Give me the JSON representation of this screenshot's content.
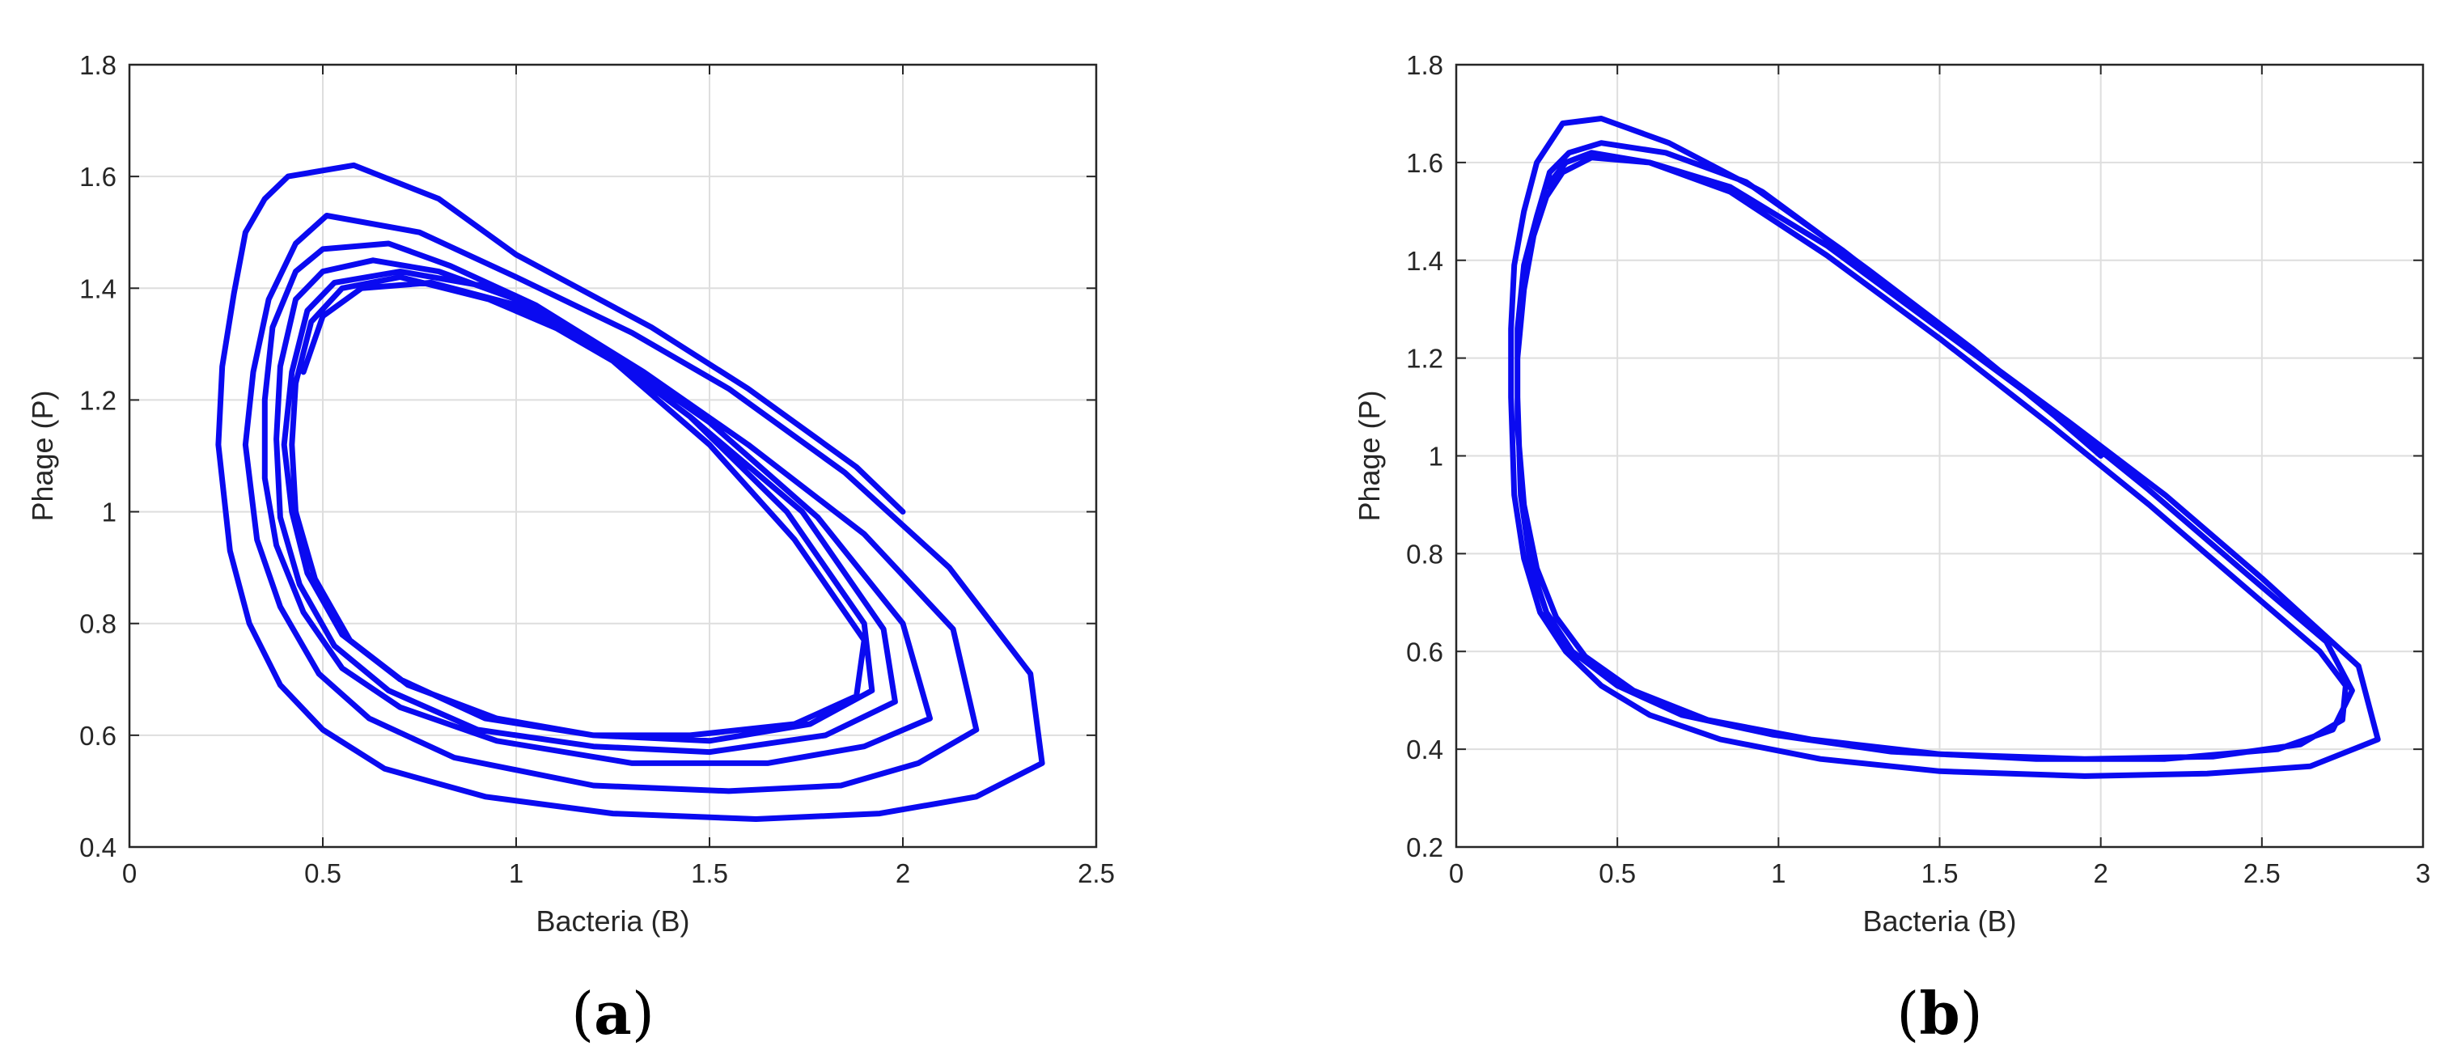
{
  "colors": {
    "curve": "#0a0af0",
    "grid": "#dedede",
    "axis": "#262626"
  },
  "chart_data": [
    {
      "type": "line",
      "panel_label": "(a)",
      "panel_letter": "a",
      "xlabel": "Bacteria (B)",
      "ylabel": "Phage (P)",
      "xlim": [
        0,
        2.5
      ],
      "ylim": [
        0.4,
        1.8
      ],
      "xticks": [
        "0",
        "0.5",
        "1",
        "1.5",
        "2",
        "2.5"
      ],
      "yticks": [
        "0.4",
        "0.6",
        "0.8",
        "1",
        "1.2",
        "1.4",
        "1.6",
        "1.8"
      ],
      "grid": true,
      "series": [
        {
          "points": [
            [
              2.0,
              1.0
            ],
            [
              1.88,
              1.08
            ],
            [
              1.6,
              1.22
            ],
            [
              1.35,
              1.33
            ],
            [
              1.0,
              1.46
            ],
            [
              0.8,
              1.56
            ],
            [
              0.58,
              1.62
            ],
            [
              0.41,
              1.6
            ],
            [
              0.35,
              1.56
            ],
            [
              0.3,
              1.5
            ],
            [
              0.27,
              1.39
            ],
            [
              0.24,
              1.26
            ],
            [
              0.23,
              1.12
            ],
            [
              0.26,
              0.93
            ],
            [
              0.31,
              0.8
            ],
            [
              0.39,
              0.69
            ],
            [
              0.5,
              0.61
            ],
            [
              0.66,
              0.54
            ],
            [
              0.92,
              0.49
            ],
            [
              1.25,
              0.46
            ],
            [
              1.62,
              0.45
            ],
            [
              1.94,
              0.46
            ],
            [
              2.19,
              0.49
            ],
            [
              2.36,
              0.55
            ],
            [
              2.33,
              0.71
            ],
            [
              2.12,
              0.9
            ],
            [
              1.85,
              1.07
            ],
            [
              1.55,
              1.22
            ],
            [
              1.3,
              1.32
            ],
            [
              1.0,
              1.42
            ],
            [
              0.75,
              1.5
            ],
            [
              0.51,
              1.53
            ],
            [
              0.43,
              1.48
            ],
            [
              0.36,
              1.38
            ],
            [
              0.32,
              1.25
            ],
            [
              0.3,
              1.12
            ],
            [
              0.33,
              0.95
            ],
            [
              0.39,
              0.83
            ],
            [
              0.49,
              0.71
            ],
            [
              0.62,
              0.63
            ],
            [
              0.84,
              0.56
            ],
            [
              1.2,
              0.51
            ],
            [
              1.55,
              0.5
            ],
            [
              1.84,
              0.51
            ],
            [
              2.04,
              0.55
            ],
            [
              2.19,
              0.61
            ],
            [
              2.13,
              0.79
            ],
            [
              1.9,
              0.96
            ],
            [
              1.6,
              1.12
            ],
            [
              1.33,
              1.25
            ],
            [
              1.05,
              1.37
            ],
            [
              0.83,
              1.44
            ],
            [
              0.67,
              1.48
            ],
            [
              0.5,
              1.47
            ],
            [
              0.43,
              1.43
            ],
            [
              0.37,
              1.33
            ],
            [
              0.35,
              1.2
            ],
            [
              0.35,
              1.06
            ],
            [
              0.38,
              0.94
            ],
            [
              0.45,
              0.82
            ],
            [
              0.55,
              0.72
            ],
            [
              0.7,
              0.65
            ],
            [
              0.95,
              0.59
            ],
            [
              1.3,
              0.55
            ],
            [
              1.65,
              0.55
            ],
            [
              1.9,
              0.58
            ],
            [
              2.07,
              0.63
            ],
            [
              2.0,
              0.8
            ],
            [
              1.78,
              0.99
            ],
            [
              1.5,
              1.16
            ],
            [
              1.25,
              1.28
            ],
            [
              1.0,
              1.38
            ],
            [
              0.8,
              1.43
            ],
            [
              0.63,
              1.45
            ],
            [
              0.5,
              1.43
            ],
            [
              0.43,
              1.38
            ],
            [
              0.39,
              1.26
            ],
            [
              0.38,
              1.13
            ],
            [
              0.39,
              0.99
            ],
            [
              0.44,
              0.87
            ],
            [
              0.53,
              0.76
            ],
            [
              0.67,
              0.68
            ],
            [
              0.9,
              0.61
            ],
            [
              1.2,
              0.58
            ],
            [
              1.5,
              0.57
            ],
            [
              1.8,
              0.6
            ],
            [
              1.98,
              0.66
            ],
            [
              1.95,
              0.79
            ],
            [
              1.74,
              1.0
            ],
            [
              1.45,
              1.17
            ],
            [
              1.2,
              1.3
            ],
            [
              0.95,
              1.4
            ],
            [
              0.7,
              1.43
            ],
            [
              0.53,
              1.41
            ],
            [
              0.46,
              1.36
            ],
            [
              0.42,
              1.25
            ],
            [
              0.4,
              1.12
            ],
            [
              0.42,
              1.0
            ],
            [
              0.46,
              0.89
            ],
            [
              0.55,
              0.78
            ],
            [
              0.7,
              0.7
            ],
            [
              0.92,
              0.63
            ],
            [
              1.2,
              0.6
            ],
            [
              1.5,
              0.59
            ],
            [
              1.76,
              0.62
            ],
            [
              1.92,
              0.68
            ],
            [
              1.9,
              0.8
            ],
            [
              1.7,
              1.0
            ],
            [
              1.45,
              1.17
            ],
            [
              1.2,
              1.3
            ],
            [
              0.93,
              1.38
            ],
            [
              0.7,
              1.42
            ],
            [
              0.55,
              1.4
            ],
            [
              0.47,
              1.34
            ],
            [
              0.43,
              1.23
            ],
            [
              0.42,
              1.12
            ],
            [
              0.43,
              1.0
            ],
            [
              0.48,
              0.88
            ],
            [
              0.57,
              0.77
            ],
            [
              0.72,
              0.69
            ],
            [
              0.95,
              0.63
            ],
            [
              1.2,
              0.6
            ],
            [
              1.45,
              0.6
            ],
            [
              1.72,
              0.62
            ],
            [
              1.88,
              0.67
            ],
            [
              1.9,
              0.77
            ],
            [
              1.72,
              0.95
            ],
            [
              1.5,
              1.12
            ],
            [
              1.25,
              1.27
            ],
            [
              1.0,
              1.37
            ],
            [
              0.78,
              1.41
            ],
            [
              0.6,
              1.4
            ],
            [
              0.5,
              1.35
            ],
            [
              0.45,
              1.25
            ]
          ]
        }
      ]
    },
    {
      "type": "line",
      "panel_label": "(b)",
      "panel_letter": "b",
      "xlabel": "Bacteria (B)",
      "ylabel": "Phage (P)",
      "xlim": [
        0,
        3
      ],
      "ylim": [
        0.2,
        1.8
      ],
      "xticks": [
        "0",
        "0.5",
        "1",
        "1.5",
        "2",
        "2.5",
        "3"
      ],
      "yticks": [
        "0.2",
        "0.4",
        "0.6",
        "0.8",
        "1",
        "1.2",
        "1.4",
        "1.6",
        "1.8"
      ],
      "grid": true,
      "series": [
        {
          "points": [
            [
              2.0,
              1.0
            ],
            [
              1.86,
              1.08
            ],
            [
              1.6,
              1.22
            ],
            [
              1.28,
              1.38
            ],
            [
              0.95,
              1.54
            ],
            [
              0.66,
              1.64
            ],
            [
              0.45,
              1.69
            ],
            [
              0.33,
              1.68
            ],
            [
              0.25,
              1.6
            ],
            [
              0.21,
              1.5
            ],
            [
              0.18,
              1.39
            ],
            [
              0.17,
              1.26
            ],
            [
              0.17,
              1.12
            ],
            [
              0.18,
              0.92
            ],
            [
              0.21,
              0.79
            ],
            [
              0.26,
              0.68
            ],
            [
              0.34,
              0.6
            ],
            [
              0.45,
              0.53
            ],
            [
              0.6,
              0.47
            ],
            [
              0.82,
              0.42
            ],
            [
              1.13,
              0.38
            ],
            [
              1.5,
              0.355
            ],
            [
              1.95,
              0.345
            ],
            [
              2.33,
              0.35
            ],
            [
              2.65,
              0.365
            ],
            [
              2.86,
              0.42
            ],
            [
              2.8,
              0.57
            ],
            [
              2.5,
              0.75
            ],
            [
              2.2,
              0.92
            ],
            [
              1.9,
              1.07
            ],
            [
              1.55,
              1.24
            ],
            [
              1.2,
              1.42
            ],
            [
              0.9,
              1.56
            ],
            [
              0.65,
              1.62
            ],
            [
              0.45,
              1.64
            ],
            [
              0.35,
              1.62
            ],
            [
              0.29,
              1.58
            ],
            [
              0.25,
              1.49
            ],
            [
              0.21,
              1.39
            ],
            [
              0.19,
              1.26
            ],
            [
              0.19,
              1.12
            ],
            [
              0.2,
              0.92
            ],
            [
              0.23,
              0.78
            ],
            [
              0.28,
              0.68
            ],
            [
              0.36,
              0.6
            ],
            [
              0.5,
              0.53
            ],
            [
              0.7,
              0.47
            ],
            [
              0.98,
              0.43
            ],
            [
              1.35,
              0.395
            ],
            [
              1.8,
              0.38
            ],
            [
              2.2,
              0.38
            ],
            [
              2.55,
              0.4
            ],
            [
              2.72,
              0.44
            ],
            [
              2.78,
              0.52
            ],
            [
              2.7,
              0.62
            ],
            [
              2.45,
              0.76
            ],
            [
              2.15,
              0.93
            ],
            [
              1.85,
              1.09
            ],
            [
              1.5,
              1.26
            ],
            [
              1.15,
              1.43
            ],
            [
              0.85,
              1.55
            ],
            [
              0.6,
              1.6
            ],
            [
              0.42,
              1.61
            ],
            [
              0.33,
              1.58
            ],
            [
              0.28,
              1.53
            ],
            [
              0.24,
              1.45
            ],
            [
              0.21,
              1.34
            ],
            [
              0.19,
              1.2
            ],
            [
              0.19,
              1.06
            ],
            [
              0.21,
              0.9
            ],
            [
              0.25,
              0.77
            ],
            [
              0.31,
              0.67
            ],
            [
              0.4,
              0.59
            ],
            [
              0.55,
              0.52
            ],
            [
              0.78,
              0.46
            ],
            [
              1.1,
              0.42
            ],
            [
              1.5,
              0.39
            ],
            [
              1.95,
              0.38
            ],
            [
              2.35,
              0.385
            ],
            [
              2.62,
              0.41
            ],
            [
              2.75,
              0.46
            ],
            [
              2.76,
              0.53
            ],
            [
              2.68,
              0.6
            ],
            [
              2.45,
              0.73
            ],
            [
              2.15,
              0.9
            ],
            [
              1.85,
              1.06
            ],
            [
              1.5,
              1.24
            ],
            [
              1.15,
              1.41
            ],
            [
              0.85,
              1.54
            ],
            [
              0.6,
              1.6
            ],
            [
              0.42,
              1.62
            ],
            [
              0.34,
              1.6
            ],
            [
              0.28,
              1.55
            ]
          ]
        }
      ]
    }
  ]
}
